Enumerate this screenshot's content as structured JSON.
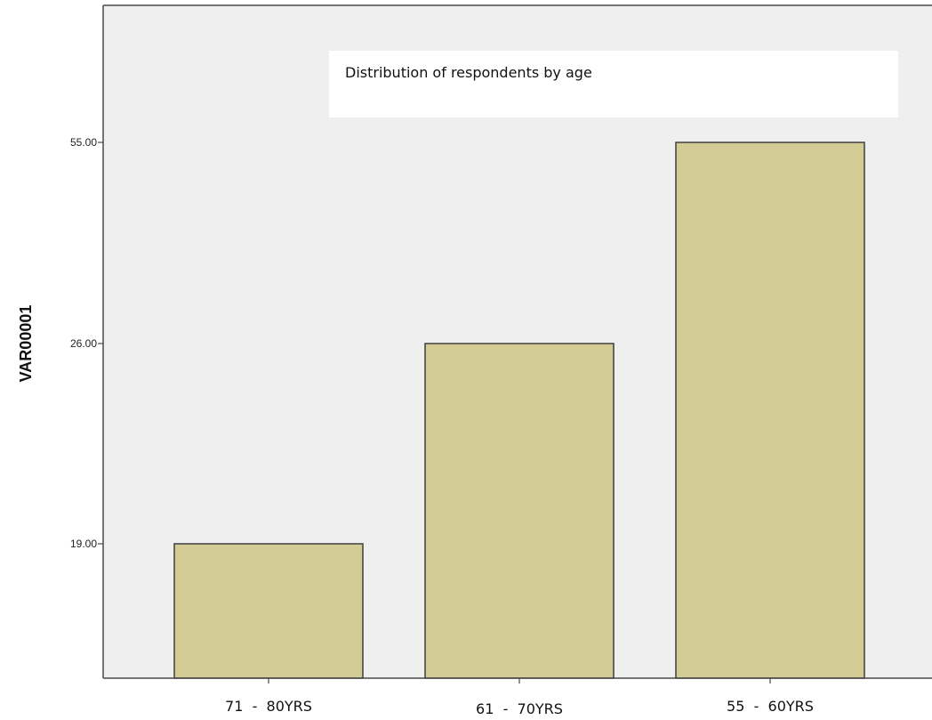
{
  "chart_data": {
    "type": "bar",
    "title": "Distribution of respondents by age",
    "xlabel": "",
    "ylabel": "VAR00001",
    "categories": [
      "71  -  80YRS",
      "61  -  70YRS",
      "55  -  60YRS"
    ],
    "values": [
      19,
      26,
      55
    ],
    "y_tick_labels": [
      "19.00",
      "26.00",
      "55.00"
    ],
    "scale": "categorical-ordinal",
    "grid": false,
    "legend": "none",
    "colors": {
      "bar_fill": "#d3cd95",
      "bar_stroke": "#3f3f3f",
      "plot_background": "#efefef",
      "axis": "#4a4a4a",
      "title_box": "#ffffff"
    }
  }
}
